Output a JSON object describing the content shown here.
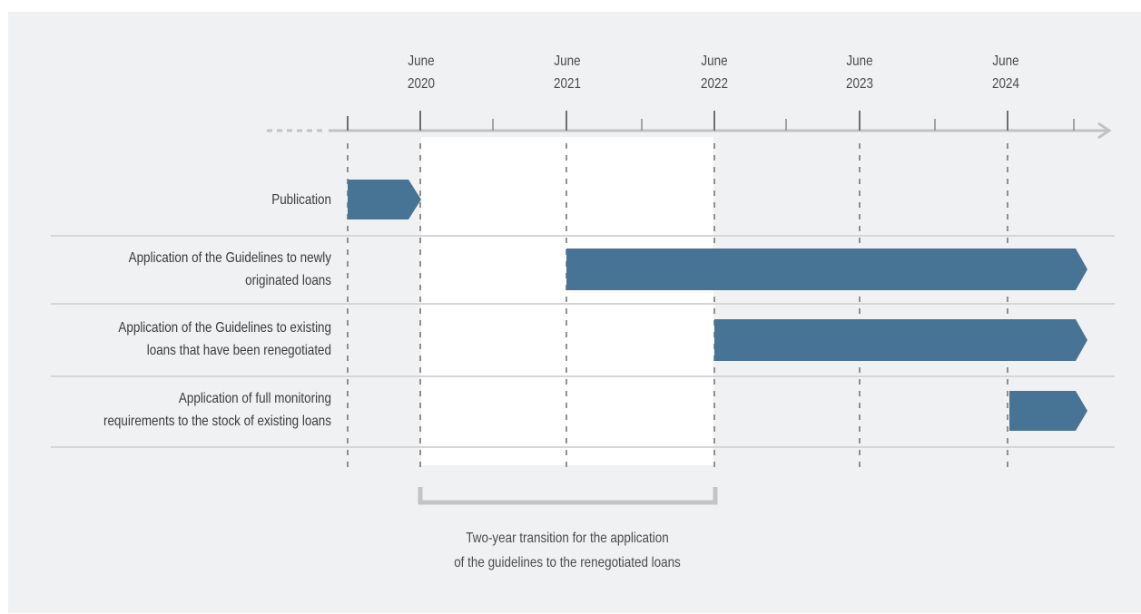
{
  "timeline": {
    "periods": [
      {
        "month": "June",
        "year": "2020"
      },
      {
        "month": "June",
        "year": "2021"
      },
      {
        "month": "June",
        "year": "2022"
      },
      {
        "month": "June",
        "year": "2023"
      },
      {
        "month": "June",
        "year": "2024"
      }
    ],
    "rows": [
      {
        "lines": [
          "Publication"
        ],
        "start": "Dec 2019",
        "end": "June 2020"
      },
      {
        "lines": [
          "Application of the Guidelines to newly",
          "originated loans"
        ],
        "start": "June 2021",
        "end": "ongoing"
      },
      {
        "lines": [
          "Application of the Guidelines to existing",
          "loans that have been renegotiated"
        ],
        "start": "June 2022",
        "end": "ongoing"
      },
      {
        "lines": [
          "Application of full monitoring",
          "requirements to the stock of existing loans"
        ],
        "start": "June 2024",
        "end": "ongoing"
      }
    ],
    "transition_note": [
      "Two-year transition for the application",
      "of the guidelines to the renegotiated loans"
    ],
    "colors": {
      "bar": "#477494",
      "axis": "#bdbdbd",
      "background": "#f0f1f3",
      "highlight": "#ffffff"
    }
  }
}
